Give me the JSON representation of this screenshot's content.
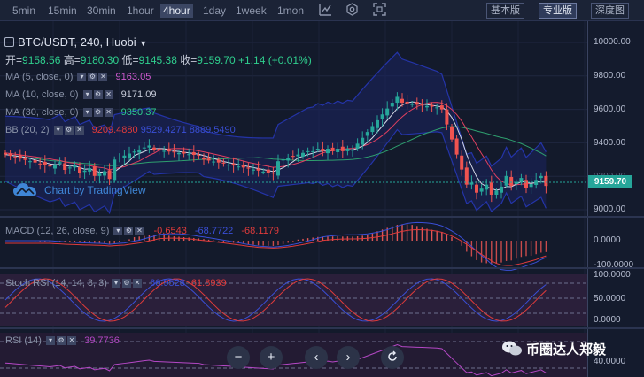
{
  "toolbar": {
    "timeframes": [
      "5min",
      "15min",
      "30min",
      "1hour",
      "4hour",
      "1day",
      "1week",
      "1mon"
    ],
    "active": "4hour",
    "views": [
      "基本版",
      "专业版",
      "深度图"
    ],
    "active_view": "专业版"
  },
  "symbol": {
    "title": "BTC/USDT, 240, Huobi"
  },
  "ohlc": {
    "open_label": "开=",
    "open": "9158.56",
    "high_label": "高=",
    "high": "9180.30",
    "low_label": "低=",
    "low": "9145.38",
    "close_label": "收=",
    "close": "9159.70",
    "change": "+1.14 (+0.01%)"
  },
  "indicators": {
    "ma5": {
      "label": "MA (5, close, 0)",
      "value": "9163.05"
    },
    "ma10": {
      "label": "MA (10, close, 0)",
      "value": "9171.09"
    },
    "ma30": {
      "label": "MA (30, close, 0)",
      "value": "9350.37"
    },
    "bb": {
      "label": "BB (20, 2)",
      "v1": "9209.4880",
      "v2": "9529.4271",
      "v3": "8889.5490"
    }
  },
  "watermark": "Chart by TradingView",
  "price_axis": {
    "ticks": [
      "10000.00",
      "9800.00",
      "9600.00",
      "9400.00",
      "9200.00",
      "9000.00"
    ],
    "last": "9159.70"
  },
  "macd": {
    "label": "MACD (12, 26, close, 9)",
    "v1": "-0.6543",
    "v2": "-68.7722",
    "v3": "-68.1179",
    "ticks": [
      "0.0000",
      "-100.0000"
    ]
  },
  "stoch": {
    "label": "Stoch RSI (14, 14, 3, 3)",
    "v1": "60.9523",
    "v2": "61.8939",
    "ticks": [
      "100.0000",
      "50.0000",
      "0.0000"
    ]
  },
  "rsi": {
    "label": "RSI (14)",
    "value": "39.7736",
    "ticks": [
      "40.0000"
    ]
  },
  "brand": "币圈达人郑毅",
  "colors": {
    "up": "#26a69a",
    "down": "#ef5350",
    "bg": "#131a2b",
    "ma5": "#d5d9e6",
    "ma30": "#2e9e6e",
    "bb": "#2434a8"
  }
}
